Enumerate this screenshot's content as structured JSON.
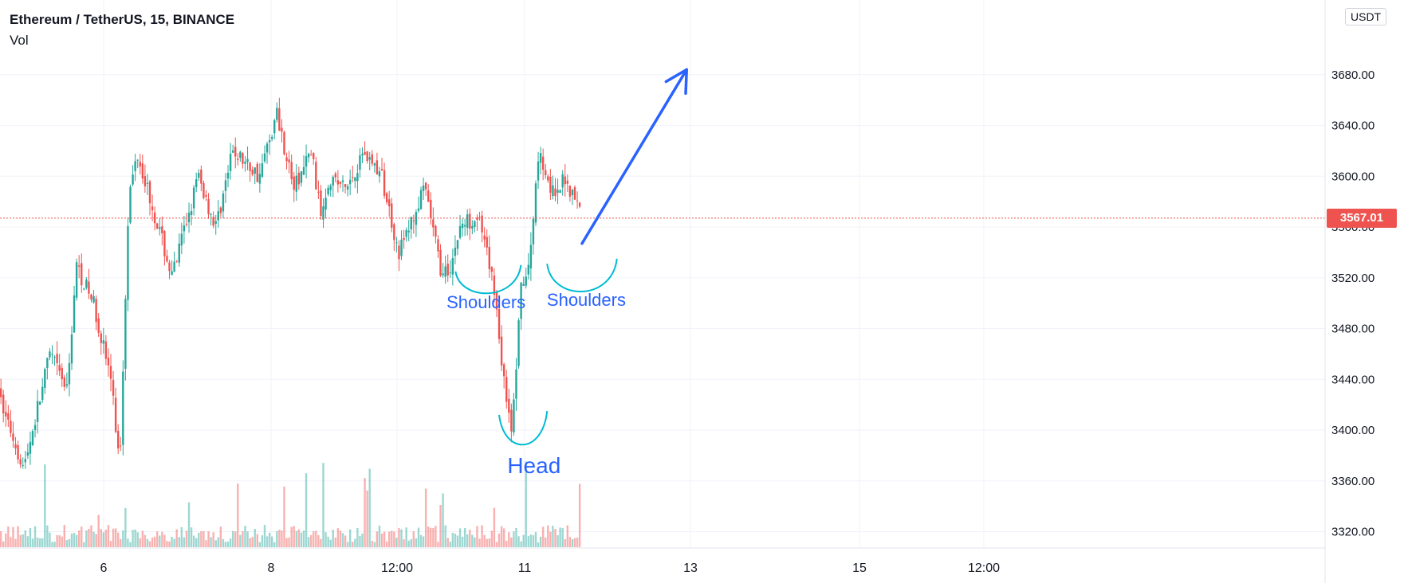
{
  "header": {
    "symbol": "Ethereum / TetherUS, 15, BINANCE",
    "indicator": "Vol",
    "unit": "USDT"
  },
  "price_tag": "3567.01",
  "colors": {
    "up": "#26a69a",
    "down": "#ef5350",
    "annotation_arrow": "#2962ff",
    "annotation_curve": "#00bcd4",
    "annotation_text": "#2962ff",
    "grid": "#f0f3fa"
  },
  "chart_data": {
    "type": "candlestick",
    "series": [
      {
        "name": "ETHUSDT",
        "kind": "candlestick"
      },
      {
        "name": "Vol",
        "kind": "volume-bars"
      }
    ],
    "y_ticks": [
      "3320.00",
      "3360.00",
      "3400.00",
      "3440.00",
      "3480.00",
      "3520.00",
      "3560.00",
      "3600.00",
      "3640.00",
      "3680.00"
    ],
    "x_ticks": [
      "6",
      "8",
      "12:00",
      "11",
      "13",
      "15",
      "12:00"
    ],
    "ylim": [
      3300,
      3720
    ],
    "last_price": 3567.01,
    "price_path": [
      [
        0,
        3430
      ],
      [
        3,
        3370
      ],
      [
        6,
        3460
      ],
      [
        8,
        3430
      ],
      [
        9,
        3530
      ],
      [
        11,
        3500
      ],
      [
        13,
        3440
      ],
      [
        14,
        3370
      ],
      [
        15,
        3580
      ],
      [
        16,
        3620
      ],
      [
        18,
        3570
      ],
      [
        20,
        3520
      ],
      [
        23,
        3600
      ],
      [
        25,
        3560
      ],
      [
        27,
        3620
      ],
      [
        30,
        3600
      ],
      [
        32,
        3650
      ],
      [
        34,
        3590
      ],
      [
        36,
        3620
      ],
      [
        37,
        3570
      ],
      [
        38,
        3600
      ],
      [
        40,
        3590
      ],
      [
        42,
        3620
      ],
      [
        44,
        3600
      ],
      [
        45,
        3570
      ],
      [
        46,
        3540
      ],
      [
        49,
        3590
      ],
      [
        51,
        3520
      ],
      [
        52,
        3530
      ],
      [
        53,
        3560
      ],
      [
        55,
        3570
      ],
      [
        57,
        3510
      ],
      [
        58,
        3440
      ],
      [
        59,
        3400
      ],
      [
        60,
        3510
      ],
      [
        61,
        3530
      ],
      [
        62,
        3620
      ],
      [
        64,
        3580
      ],
      [
        65,
        3600
      ],
      [
        67,
        3570
      ]
    ],
    "annotations": [
      {
        "type": "text",
        "text": "Shoulders",
        "x": 56,
        "y": 3496
      },
      {
        "type": "text",
        "text": "Shoulders",
        "x": 67.5,
        "y": 3498
      },
      {
        "type": "text",
        "text": "Head",
        "x": 61.5,
        "y": 3366
      },
      {
        "type": "curve",
        "from": [
          52.5,
          3525
        ],
        "to": [
          60,
          3530
        ],
        "bottom": 3510
      },
      {
        "type": "curve",
        "from": [
          63,
          3531
        ],
        "to": [
          71,
          3535
        ],
        "bottom": 3510
      },
      {
        "type": "curve",
        "from": [
          57.5,
          3412
        ],
        "to": [
          63,
          3415
        ],
        "bottom": 3389
      },
      {
        "type": "arrow",
        "from": [
          67,
          3547
        ],
        "to": [
          79,
          3684
        ]
      }
    ]
  }
}
